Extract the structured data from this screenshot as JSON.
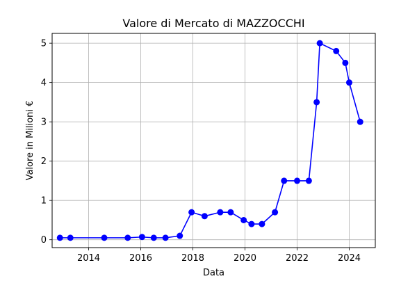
{
  "chart_data": {
    "type": "line",
    "title": "Valore di Mercato di MAZZOCCHI",
    "xlabel": "Data",
    "ylabel": "Valore in Milioni €",
    "xlim": [
      2012.6,
      2025.0
    ],
    "ylim": [
      -0.2,
      5.25
    ],
    "x_ticks": [
      2014,
      2016,
      2018,
      2020,
      2022,
      2024
    ],
    "x_tick_labels": [
      "2014",
      "2016",
      "2018",
      "2020",
      "2022",
      "2024"
    ],
    "y_ticks": [
      0,
      1,
      2,
      3,
      4,
      5
    ],
    "y_tick_labels": [
      "0",
      "1",
      "2",
      "3",
      "4",
      "5"
    ],
    "grid": true,
    "series": [
      {
        "color": "#0000ff",
        "marker": "circle",
        "points": [
          {
            "x": 2012.9,
            "y": 0.05
          },
          {
            "x": 2013.3,
            "y": 0.05
          },
          {
            "x": 2014.6,
            "y": 0.05
          },
          {
            "x": 2015.5,
            "y": 0.05
          },
          {
            "x": 2016.05,
            "y": 0.07
          },
          {
            "x": 2016.5,
            "y": 0.05
          },
          {
            "x": 2016.95,
            "y": 0.05
          },
          {
            "x": 2017.5,
            "y": 0.1
          },
          {
            "x": 2017.95,
            "y": 0.7
          },
          {
            "x": 2018.45,
            "y": 0.6
          },
          {
            "x": 2019.05,
            "y": 0.7
          },
          {
            "x": 2019.45,
            "y": 0.7
          },
          {
            "x": 2019.95,
            "y": 0.5
          },
          {
            "x": 2020.25,
            "y": 0.4
          },
          {
            "x": 2020.65,
            "y": 0.4
          },
          {
            "x": 2021.15,
            "y": 0.7
          },
          {
            "x": 2021.5,
            "y": 1.5
          },
          {
            "x": 2022.0,
            "y": 1.5
          },
          {
            "x": 2022.45,
            "y": 1.5
          },
          {
            "x": 2022.75,
            "y": 3.5
          },
          {
            "x": 2022.87,
            "y": 5.0
          },
          {
            "x": 2023.5,
            "y": 4.8
          },
          {
            "x": 2023.85,
            "y": 4.5
          },
          {
            "x": 2024.0,
            "y": 4.0
          },
          {
            "x": 2024.42,
            "y": 3.0
          }
        ]
      }
    ]
  }
}
